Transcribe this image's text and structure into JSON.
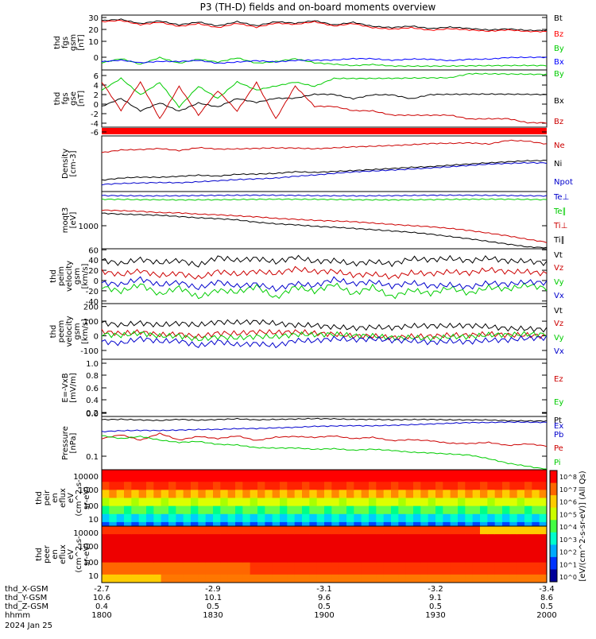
{
  "title": "P3 (TH-D) fields and on-board moments overview",
  "chart_data": [
    {
      "type": "line",
      "ylabel": [
        "thd",
        "fgs",
        "gsm",
        "[nT]"
      ],
      "ylim": [
        -8,
        32
      ],
      "yticks": [
        "30",
        "20",
        "10",
        "0"
      ],
      "series": [
        {
          "name": "Bt",
          "color": "#000000",
          "values": [
            28,
            29,
            26,
            28,
            25,
            27,
            24,
            27,
            24,
            27,
            26,
            28,
            25,
            27,
            24,
            23,
            24,
            22,
            23,
            22,
            21,
            22,
            21,
            21
          ]
        },
        {
          "name": "Bz",
          "color": "#ff0000",
          "values": [
            27,
            28,
            25,
            27,
            24,
            26,
            23,
            26,
            23,
            26,
            25,
            27,
            24,
            26,
            23,
            22,
            23,
            21,
            22,
            21,
            20,
            21,
            20,
            20
          ]
        },
        {
          "name": "By",
          "color": "#00cc00",
          "values": [
            -3,
            0,
            -4,
            1,
            -3,
            0,
            -2,
            1,
            -3,
            -2,
            0,
            -3,
            -4,
            -5,
            -4,
            -5,
            -5,
            -5,
            -5,
            -5,
            -5,
            -5,
            -5,
            -5
          ]
        },
        {
          "name": "Bx",
          "color": "#0000ff",
          "values": [
            -2,
            -1,
            -3,
            -2,
            -2,
            -1,
            -3,
            -2,
            -1,
            -2,
            -1,
            -1,
            -1,
            0,
            0,
            -1,
            0,
            0,
            -1,
            0,
            0,
            1,
            1,
            1
          ]
        }
      ]
    },
    {
      "type": "line",
      "ylabel": [
        "thd",
        "fgs",
        "gse",
        "[nT]"
      ],
      "ylim": [
        -7,
        7
      ],
      "yticks": [
        "6",
        "4",
        "2",
        "0",
        "-2",
        "-4",
        "-6"
      ],
      "series": [
        {
          "name": "By",
          "color": "#00cc00",
          "values": [
            2,
            5,
            1,
            4,
            -2,
            3,
            0,
            4,
            2,
            3,
            4,
            3,
            5,
            5,
            5,
            5,
            5,
            5,
            5,
            6,
            6,
            6,
            6,
            6
          ]
        },
        {
          "name": "Bx",
          "color": "#000000",
          "values": [
            -2,
            0,
            -3,
            -1,
            -3,
            -1,
            -2,
            0,
            -1,
            0,
            0,
            1,
            1,
            0,
            1,
            1,
            0,
            1,
            1,
            1,
            1,
            1,
            1,
            1
          ]
        },
        {
          "name": "Bz",
          "color": "#cc0000",
          "values": [
            4,
            -3,
            4,
            -5,
            3,
            -4,
            2,
            -3,
            4,
            -5,
            3,
            -2,
            -2,
            -3,
            -3,
            -4,
            -4,
            -4,
            -4,
            -5,
            -5,
            -5,
            -6,
            -6
          ]
        }
      ]
    },
    {
      "type": "line",
      "ylabel": [
        "Density",
        "[cm-3]"
      ],
      "ylim": [
        0,
        10
      ],
      "yticks": [],
      "series": [
        {
          "name": "Ne",
          "color": "#cc0000",
          "values": [
            7,
            7.5,
            7.6,
            7.8,
            7.4,
            7.9,
            7.6,
            7.6,
            7.7,
            7.8,
            7.8,
            7.7,
            7.9,
            8.1,
            8.2,
            8.3,
            8.4,
            8.6,
            8.6,
            8.7,
            8.5,
            9.2,
            9.1,
            8.6
          ]
        },
        {
          "name": "Ni",
          "color": "#000000",
          "values": [
            2,
            2.4,
            2.6,
            2.6,
            2.8,
            3,
            2.8,
            3.1,
            3.1,
            3.2,
            3.5,
            3.4,
            3.6,
            3.8,
            4,
            4.2,
            4.4,
            4.5,
            4.7,
            4.9,
            5.1,
            5.3,
            5.5,
            5.6
          ]
        },
        {
          "name": "Npot",
          "color": "#0000cc",
          "values": [
            1.2,
            1.4,
            1.5,
            1.6,
            1.6,
            1.8,
            2,
            2.2,
            2.3,
            2.4,
            2.7,
            2.9,
            3.2,
            3.5,
            3.7,
            3.9,
            4.1,
            4.3,
            4.5,
            4.7,
            4.9,
            5,
            5.1,
            5.1
          ]
        }
      ]
    },
    {
      "type": "line",
      "ylabel": [
        "moqt3",
        "[eV]"
      ],
      "ylim": [
        0,
        10
      ],
      "yticks": [
        "1000"
      ],
      "series": [
        {
          "name": "Te⊥",
          "color": "#0000cc",
          "values": [
            9.3,
            9.3,
            9.3,
            9.3,
            9.3,
            9.3,
            9.3,
            9.3,
            9.3,
            9.3,
            9.3,
            9.3,
            9.3,
            9.3,
            9.3,
            9.3,
            9.3,
            9.3,
            9.3,
            9.3,
            9.3,
            9.3,
            9.3,
            9.3
          ]
        },
        {
          "name": "Te∥",
          "color": "#00cc00",
          "values": [
            8.6,
            8.6,
            8.6,
            8.6,
            8.6,
            8.6,
            8.6,
            8.6,
            8.6,
            8.6,
            8.6,
            8.6,
            8.6,
            8.6,
            8.6,
            8.6,
            8.6,
            8.6,
            8.6,
            8.6,
            8.6,
            8.6,
            8.6,
            8.6
          ]
        },
        {
          "name": "Ti⊥",
          "color": "#cc0000",
          "values": [
            6.7,
            6.6,
            6.5,
            6.3,
            6.3,
            6.1,
            6,
            5.8,
            5.6,
            5.3,
            5.1,
            4.9,
            4.8,
            4.7,
            4.5,
            4.3,
            4.1,
            3.9,
            3.6,
            3.2,
            2.7,
            2.2,
            1.6,
            1.1
          ]
        },
        {
          "name": "Ti∥",
          "color": "#000000",
          "values": [
            6.2,
            6,
            5.9,
            5.8,
            5.6,
            5.4,
            5.3,
            5.1,
            4.7,
            4.4,
            4.2,
            3.9,
            3.7,
            3.5,
            3.3,
            3.1,
            2.9,
            2.6,
            2.2,
            1.8,
            1.3,
            0.8,
            0.3,
            0.1
          ]
        }
      ]
    },
    {
      "type": "line",
      "ylabel": [
        "thd",
        "peim",
        "velocity",
        "gsm",
        "[km/s]"
      ],
      "ylim": [
        -45,
        62
      ],
      "yticks": [
        "60",
        "40",
        "20",
        "0",
        "-20",
        "-40"
      ],
      "series": [
        {
          "name": "Vt",
          "color": "#000000",
          "values": [
            40,
            35,
            45,
            38,
            42,
            30,
            44,
            36,
            40,
            33,
            45,
            38,
            42,
            36,
            40,
            34,
            42,
            38,
            40,
            35,
            42,
            38,
            40,
            37
          ]
        },
        {
          "name": "Vz",
          "color": "#cc0000",
          "values": [
            15,
            10,
            20,
            12,
            18,
            8,
            20,
            12,
            16,
            10,
            20,
            15,
            18,
            12,
            16,
            10,
            18,
            14,
            16,
            12,
            18,
            14,
            16,
            14
          ]
        },
        {
          "name": "Vy",
          "color": "#00cc00",
          "values": [
            -15,
            -25,
            -10,
            -28,
            -12,
            -30,
            -15,
            -20,
            -10,
            -35,
            -15,
            -25,
            -10,
            -28,
            -12,
            -30,
            -15,
            -22,
            -12,
            -25,
            -15,
            -20,
            -12,
            -18
          ]
        },
        {
          "name": "Vx",
          "color": "#0000cc",
          "values": [
            -5,
            -10,
            0,
            -12,
            -5,
            -15,
            0,
            -8,
            -3,
            -15,
            -5,
            -12,
            0,
            -10,
            -5,
            -12,
            -3,
            -8,
            -5,
            -10,
            -3,
            -8,
            -5,
            -8
          ]
        }
      ]
    },
    {
      "type": "line",
      "ylabel": [
        "thd",
        "peem",
        "velocity",
        "gsm",
        "[km/s]"
      ],
      "ylim": [
        -160,
        220
      ],
      "yticks": [
        "200",
        "100",
        "0",
        "-100"
      ],
      "series": [
        {
          "name": "Vt",
          "color": "#000000",
          "values": [
            90,
            80,
            100,
            85,
            95,
            75,
            90,
            80,
            85,
            75,
            70,
            75,
            70,
            65,
            70,
            60,
            65,
            60,
            55,
            60,
            55,
            50,
            55,
            55
          ]
        },
        {
          "name": "Vz",
          "color": "#cc0000",
          "values": [
            20,
            10,
            30,
            15,
            25,
            5,
            25,
            15,
            20,
            10,
            15,
            10,
            10,
            5,
            10,
            0,
            5,
            0,
            0,
            -5,
            0,
            -5,
            0,
            0
          ]
        },
        {
          "name": "Vy",
          "color": "#00cc00",
          "values": [
            0,
            -10,
            10,
            -5,
            5,
            -15,
            5,
            -5,
            0,
            -10,
            0,
            -5,
            0,
            -5,
            0,
            -5,
            0,
            -5,
            0,
            -5,
            0,
            -5,
            0,
            0
          ]
        },
        {
          "name": "Vx",
          "color": "#0000cc",
          "values": [
            -40,
            -60,
            -30,
            -50,
            -40,
            -70,
            -30,
            -50,
            -40,
            -60,
            -30,
            -40,
            -30,
            -40,
            -30,
            -35,
            -30,
            -35,
            -25,
            -30,
            -25,
            -30,
            -25,
            -25
          ]
        }
      ]
    },
    {
      "type": "line",
      "ylabel": [
        "E=-VxB",
        "[mV/m]"
      ],
      "ylim": [
        -0.05,
        1.0
      ],
      "yticks": [
        "1.0",
        "0.8",
        "0.6",
        "0.4",
        "0.2",
        "0.0"
      ],
      "series": [
        {
          "name": "Ez",
          "color": "#cc0000",
          "values": []
        },
        {
          "name": "Ey",
          "color": "#00cc00",
          "values": []
        },
        {
          "name": "Ex",
          "color": "#0000cc",
          "values": []
        }
      ]
    },
    {
      "type": "line",
      "ylabel": [
        "Pressure",
        "[nPa]"
      ],
      "ylim": [
        0,
        10
      ],
      "yticks": [
        "0.1"
      ],
      "series": [
        {
          "name": "Pt",
          "color": "#000000",
          "values": [
            9.4,
            9.5,
            9.4,
            9.3,
            9.5,
            9.3,
            9.4,
            9.5,
            9.3,
            9.4,
            9.5,
            9.6,
            9.6,
            9.5,
            9.5,
            9.4,
            9.4,
            9.4,
            9.3,
            9.3,
            9.3,
            9.2,
            9.2,
            9.2
          ]
        },
        {
          "name": "Pb",
          "color": "#0000cc",
          "values": [
            7.1,
            7.3,
            7.4,
            7.4,
            7.5,
            7.6,
            7.6,
            7.7,
            7.7,
            7.8,
            7.9,
            8.1,
            8.2,
            8.3,
            8.3,
            8.4,
            8.5,
            8.6,
            8.7,
            8.8,
            8.8,
            8.9,
            8.9,
            8.9
          ]
        },
        {
          "name": "Pe",
          "color": "#cc0000",
          "values": [
            5.8,
            6.5,
            5.5,
            6.8,
            5.6,
            6.3,
            5.9,
            6.4,
            5.5,
            6.1,
            6.2,
            6.0,
            6.3,
            5.8,
            6.1,
            5.5,
            5.7,
            5.5,
            5.0,
            4.9,
            5.1,
            4.5,
            4.8,
            4.4
          ]
        },
        {
          "name": "Pi",
          "color": "#00cc00",
          "values": [
            6.4,
            5.8,
            6.2,
            5.5,
            5.1,
            5.3,
            4.8,
            4.7,
            4.2,
            4.1,
            4.1,
            3.8,
            3.9,
            3.6,
            3.8,
            3.6,
            3.3,
            3.2,
            3.0,
            2.8,
            2.1,
            1.2,
            0.6,
            0.0
          ]
        }
      ]
    },
    {
      "type": "heatmap",
      "ylabel": [
        "thd",
        "peir",
        "en",
        "eflux",
        "eV",
        "(cm^2-s-",
        "sr-eV)"
      ],
      "yticks": [
        "10000",
        "1000",
        "100",
        "10"
      ]
    },
    {
      "type": "heatmap",
      "ylabel": [
        "thd",
        "peer",
        "en",
        "eflux",
        "eV",
        "(cm^2-s-",
        "sr-eV)"
      ],
      "yticks": [
        "10000",
        "1000",
        "100",
        "10"
      ]
    }
  ],
  "xaxis": {
    "ticks": [
      {
        "label": "thd_X-GSM",
        "values": [
          "-2.7",
          "-2.9",
          "-3.1",
          "-3.2",
          "-3.4"
        ]
      },
      {
        "label": "thd_Y-GSM",
        "values": [
          "10.6",
          "10.1",
          "9.6",
          "9.1",
          "8.6"
        ]
      },
      {
        "label": "thd_Z-GSM",
        "values": [
          "0.4",
          "0.5",
          "0.5",
          "0.5",
          "0.5"
        ]
      },
      {
        "label": "hhmm",
        "values": [
          "1800",
          "1830",
          "1900",
          "1930",
          "2000"
        ]
      }
    ],
    "date": "2024 Jan 25"
  },
  "colorbar_label": "[eV/(cm^2-s-sr-eV)] (All Qs)",
  "colorbar_ticks": [
    "10^8",
    "10^7",
    "10^6",
    "10^5",
    "10^4",
    "10^3",
    "10^2",
    "10^1",
    "10^0"
  ]
}
